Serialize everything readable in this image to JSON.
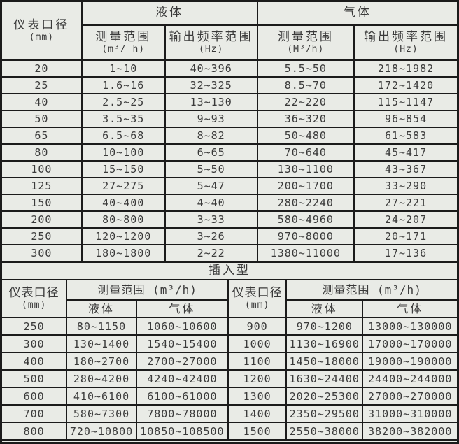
{
  "colors": {
    "background": "#e9ebe6",
    "border": "#1b1b1b",
    "text": "#3a3a3a"
  },
  "top_table": {
    "diameter_header": "仪表口径",
    "diameter_unit": "(mm)",
    "liquid_header": "液体",
    "gas_header": "气体",
    "measure_header": "测量范围",
    "liquid_measure_unit": "(m³/ h)",
    "gas_measure_unit": "(M³/h)",
    "freq_header": "输出频率范围",
    "freq_unit": "(Hz)",
    "columns": [
      "仪表口径(mm)",
      "液体 测量范围(m³/h)",
      "液体 输出频率范围(Hz)",
      "气体 测量范围(M³/h)",
      "气体 输出频率范围(Hz)"
    ],
    "rows": [
      [
        "20",
        "1~10",
        "40~396",
        "5.5~50",
        "218~1982"
      ],
      [
        "25",
        "1.6~16",
        "32~325",
        "8.5~70",
        "172~1420"
      ],
      [
        "40",
        "2.5~25",
        "13~130",
        "22~220",
        "115~1147"
      ],
      [
        "50",
        "3.5~35",
        "9~93",
        "36~320",
        "96~854"
      ],
      [
        "65",
        "6.5~68",
        "8~82",
        "50~480",
        "61~583"
      ],
      [
        "80",
        "10~100",
        "6~65",
        "70~640",
        "45~417"
      ],
      [
        "100",
        "15~150",
        "5~50",
        "130~1100",
        "43~367"
      ],
      [
        "125",
        "27~275",
        "5~47",
        "200~1700",
        "33~290"
      ],
      [
        "150",
        "40~400",
        "4~40",
        "280~2240",
        "27~221"
      ],
      [
        "200",
        "80~800",
        "3~33",
        "580~4960",
        "24~207"
      ],
      [
        "250",
        "120~1200",
        "3~26",
        "970~8000",
        "20~171"
      ],
      [
        "300",
        "180~1800",
        "2~22",
        "1380~11000",
        "17~136"
      ]
    ]
  },
  "insert_section": {
    "title": "插入型"
  },
  "bottom_table": {
    "diameter_header": "仪表口径",
    "diameter_unit": "(mm)",
    "measure_header": "测量范围 (m³/h)",
    "liquid_header": "液体",
    "gas_header": "气体",
    "columns": [
      "仪表口径(mm)",
      "液体",
      "气体",
      "仪表口径(mm)",
      "液体",
      "气体"
    ],
    "rows": [
      [
        "250",
        "80~1150",
        "1060~10600",
        "900",
        "970~1200",
        "13000~130000"
      ],
      [
        "300",
        "130~1400",
        "1540~15400",
        "1000",
        "1130~16900",
        "17000~170000"
      ],
      [
        "400",
        "180~2700",
        "2700~27000",
        "1100",
        "1450~18000",
        "19000~190000"
      ],
      [
        "500",
        "280~4200",
        "4240~42400",
        "1200",
        "1630~24400",
        "24400~244000"
      ],
      [
        "600",
        "410~6100",
        "6100~61000",
        "1300",
        "2020~25300",
        "27000~270000"
      ],
      [
        "700",
        "580~7300",
        "7800~78000",
        "1400",
        "2350~29500",
        "31000~310000"
      ],
      [
        "800",
        "720~10800",
        "10850~108500",
        "1500",
        "2550~38000",
        "38200~382000"
      ]
    ]
  }
}
